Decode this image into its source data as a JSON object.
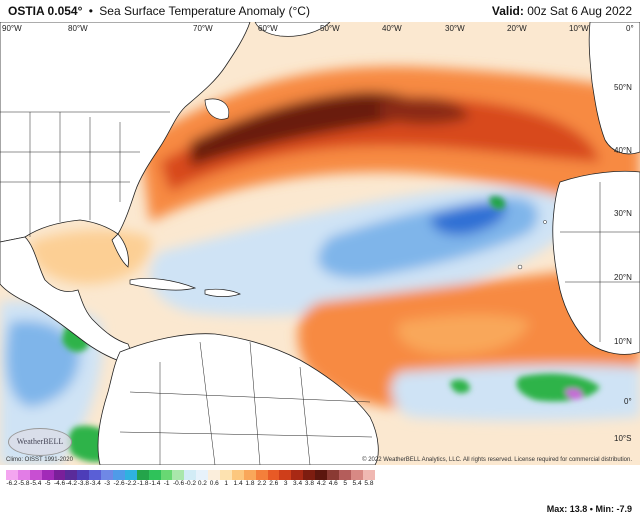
{
  "header": {
    "product": "OSTIA 0.054°",
    "bullet": "•",
    "title": "Sea Surface Temperature Anomaly (°C)",
    "valid_label": "Valid:",
    "valid_time": "00z Sat 6 Aug 2022"
  },
  "map": {
    "lon_labels": [
      "90°W",
      "80°W",
      "70°W",
      "60°W",
      "50°W",
      "40°W",
      "30°W",
      "20°W",
      "10°W",
      "0°"
    ],
    "lat_labels": [
      "50°N",
      "40°N",
      "30°N",
      "20°N",
      "10°N",
      "0°",
      "10°S"
    ],
    "colors": {
      "ocean_base": "#fbe8d0",
      "land": "#ffffff",
      "border": "#222222",
      "warm_light": "#fccf94",
      "warm_mid": "#f78a42",
      "warm_strong": "#d84a1a",
      "warm_extreme": "#6b1a10",
      "cool_light": "#cfe3f5",
      "cool_mid": "#7fb5ea",
      "cool_strong": "#2f6fd4",
      "green": "#2db34a",
      "purple": "#c86bd8"
    }
  },
  "copyright": "© 2022 WeatherBELL Analytics, LLC. All rights reserved. License required for commercial distribution.",
  "climo": "Climo: OISST 1991-2020",
  "logo_text": "WeatherBELL",
  "scale": {
    "tick_labels": [
      "-6.2",
      "-5.8",
      "-5.4",
      "-5",
      "-4.6",
      "-4.2",
      "-3.8",
      "-3.4",
      "-3",
      "-2.6",
      "-2.2",
      "-1.8",
      "-1.4",
      "-1",
      "-0.6",
      "-0.2",
      "0.2",
      "0.6",
      "1",
      "1.4",
      "1.8",
      "2.2",
      "2.6",
      "3",
      "3.4",
      "3.8",
      "4.2",
      "4.6",
      "5",
      "5.4",
      "5.8"
    ],
    "colors": [
      "#f4a6f0",
      "#e27de6",
      "#c84fd2",
      "#a22ab8",
      "#7a1f9a",
      "#5a2b9a",
      "#4d3db8",
      "#5a5fd6",
      "#6f88e6",
      "#4f9be8",
      "#2fb2e0",
      "#24a44a",
      "#2fc25a",
      "#68d873",
      "#a9e7ab",
      "#d2ecf6",
      "#e7f2fb",
      "#fbeedc",
      "#fde2b0",
      "#fcc77e",
      "#f9a75a",
      "#f47f3b",
      "#e85a26",
      "#cf3e1a",
      "#a82914",
      "#7d1d10",
      "#5c160e",
      "#8a3a33",
      "#b45d5b",
      "#d88984",
      "#f0b8b2"
    ]
  },
  "stats": {
    "max_label": "Max:",
    "max_value": "13.8",
    "sep": "•",
    "min_label": "Min:",
    "min_value": "-7.9"
  }
}
